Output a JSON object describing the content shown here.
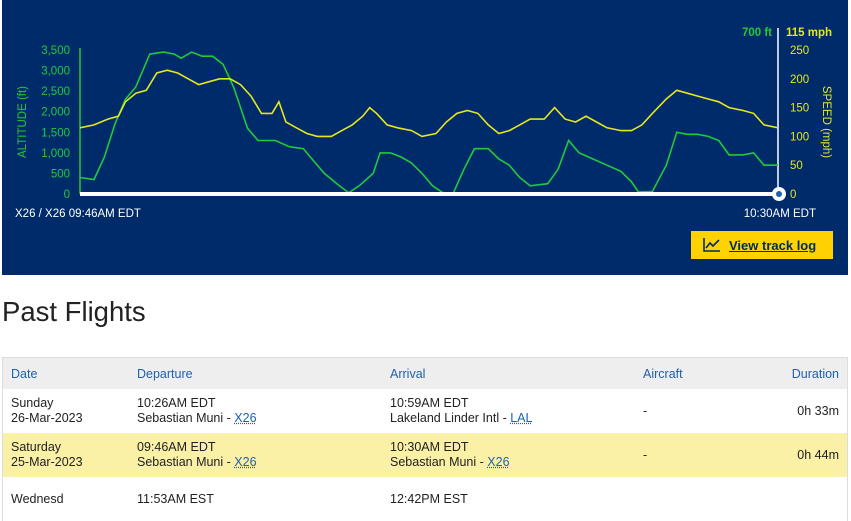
{
  "chart_data": {
    "type": "line",
    "left_axis": {
      "label": "ALTITUDE (ft)",
      "ticks": [
        "3,500",
        "3,000",
        "2,500",
        "2,000",
        "1,500",
        "1,000",
        "500",
        "0"
      ],
      "ylim": [
        0,
        3500
      ],
      "current_value": "700 ft",
      "color": "#22c93a"
    },
    "right_axis": {
      "label": "SPEED (mph)",
      "ticks": [
        "250",
        "200",
        "150",
        "100",
        "50",
        "0"
      ],
      "ylim": [
        0,
        250
      ],
      "current_value": "115 mph",
      "color": "#e6e61e"
    },
    "x_start_label": "X26 / X26 09:46AM EDT",
    "x_end_label": "10:30AM EDT",
    "x_units": "fraction of flight duration",
    "series": [
      {
        "name": "Altitude",
        "color": "#22c93a",
        "points": [
          [
            0,
            400
          ],
          [
            0.02,
            350
          ],
          [
            0.035,
            900
          ],
          [
            0.05,
            1700
          ],
          [
            0.065,
            2300
          ],
          [
            0.08,
            2600
          ],
          [
            0.1,
            3400
          ],
          [
            0.12,
            3450
          ],
          [
            0.135,
            3400
          ],
          [
            0.145,
            3300
          ],
          [
            0.16,
            3450
          ],
          [
            0.175,
            3350
          ],
          [
            0.19,
            3350
          ],
          [
            0.205,
            3150
          ],
          [
            0.22,
            2600
          ],
          [
            0.24,
            1600
          ],
          [
            0.255,
            1300
          ],
          [
            0.28,
            1300
          ],
          [
            0.3,
            1150
          ],
          [
            0.32,
            1100
          ],
          [
            0.335,
            800
          ],
          [
            0.35,
            500
          ],
          [
            0.37,
            220
          ],
          [
            0.385,
            30
          ],
          [
            0.4,
            200
          ],
          [
            0.42,
            500
          ],
          [
            0.43,
            1000
          ],
          [
            0.445,
            1000
          ],
          [
            0.46,
            900
          ],
          [
            0.475,
            750
          ],
          [
            0.49,
            500
          ],
          [
            0.505,
            200
          ],
          [
            0.52,
            30
          ],
          [
            0.535,
            30
          ],
          [
            0.55,
            600
          ],
          [
            0.565,
            1100
          ],
          [
            0.585,
            1100
          ],
          [
            0.6,
            850
          ],
          [
            0.615,
            700
          ],
          [
            0.63,
            400
          ],
          [
            0.645,
            200
          ],
          [
            0.67,
            250
          ],
          [
            0.685,
            600
          ],
          [
            0.7,
            1300
          ],
          [
            0.715,
            1000
          ],
          [
            0.735,
            850
          ],
          [
            0.755,
            700
          ],
          [
            0.775,
            550
          ],
          [
            0.79,
            300
          ],
          [
            0.8,
            50
          ],
          [
            0.82,
            60
          ],
          [
            0.84,
            700
          ],
          [
            0.855,
            1500
          ],
          [
            0.87,
            1450
          ],
          [
            0.885,
            1450
          ],
          [
            0.9,
            1400
          ],
          [
            0.915,
            1300
          ],
          [
            0.93,
            950
          ],
          [
            0.95,
            950
          ],
          [
            0.965,
            1000
          ],
          [
            0.98,
            700
          ],
          [
            1,
            700
          ]
        ]
      },
      {
        "name": "Speed",
        "color": "#e6e61e",
        "points": [
          [
            0,
            115
          ],
          [
            0.02,
            120
          ],
          [
            0.04,
            130
          ],
          [
            0.055,
            135
          ],
          [
            0.065,
            160
          ],
          [
            0.08,
            175
          ],
          [
            0.095,
            180
          ],
          [
            0.11,
            210
          ],
          [
            0.125,
            215
          ],
          [
            0.14,
            210
          ],
          [
            0.155,
            200
          ],
          [
            0.17,
            190
          ],
          [
            0.185,
            195
          ],
          [
            0.2,
            200
          ],
          [
            0.215,
            200
          ],
          [
            0.23,
            190
          ],
          [
            0.245,
            170
          ],
          [
            0.26,
            140
          ],
          [
            0.275,
            140
          ],
          [
            0.285,
            160
          ],
          [
            0.295,
            125
          ],
          [
            0.31,
            115
          ],
          [
            0.325,
            105
          ],
          [
            0.34,
            100
          ],
          [
            0.36,
            100
          ],
          [
            0.375,
            110
          ],
          [
            0.39,
            120
          ],
          [
            0.405,
            135
          ],
          [
            0.415,
            150
          ],
          [
            0.425,
            140
          ],
          [
            0.44,
            120
          ],
          [
            0.455,
            115
          ],
          [
            0.475,
            110
          ],
          [
            0.49,
            100
          ],
          [
            0.51,
            105
          ],
          [
            0.525,
            125
          ],
          [
            0.54,
            140
          ],
          [
            0.555,
            145
          ],
          [
            0.57,
            140
          ],
          [
            0.585,
            120
          ],
          [
            0.6,
            105
          ],
          [
            0.615,
            110
          ],
          [
            0.63,
            120
          ],
          [
            0.645,
            130
          ],
          [
            0.665,
            130
          ],
          [
            0.68,
            150
          ],
          [
            0.695,
            130
          ],
          [
            0.71,
            125
          ],
          [
            0.725,
            135
          ],
          [
            0.74,
            125
          ],
          [
            0.755,
            115
          ],
          [
            0.775,
            110
          ],
          [
            0.79,
            110
          ],
          [
            0.805,
            120
          ],
          [
            0.82,
            140
          ],
          [
            0.84,
            165
          ],
          [
            0.855,
            180
          ],
          [
            0.87,
            175
          ],
          [
            0.885,
            170
          ],
          [
            0.9,
            165
          ],
          [
            0.915,
            160
          ],
          [
            0.93,
            150
          ],
          [
            0.95,
            145
          ],
          [
            0.965,
            140
          ],
          [
            0.98,
            120
          ],
          [
            1,
            115
          ]
        ]
      }
    ]
  },
  "chart_buttons": {
    "view_track_log": "View track log"
  },
  "past_flights": {
    "title": "Past Flights",
    "columns": [
      "Date",
      "Departure",
      "Arrival",
      "Aircraft",
      "Duration"
    ],
    "rows": [
      {
        "day": "Sunday",
        "date": "26-Mar-2023",
        "dep_time": "10:26AM EDT",
        "dep_airport": "Sebastian Muni - ",
        "dep_code": "X26",
        "arr_time": "10:59AM EDT",
        "arr_airport": "Lakeland Linder Intl - ",
        "arr_code": "LAL",
        "aircraft": "-",
        "duration": "0h 33m"
      },
      {
        "day": "Saturday",
        "date": "25-Mar-2023",
        "dep_time": "09:46AM EDT",
        "dep_airport": "Sebastian Muni - ",
        "dep_code": "X26",
        "arr_time": "10:30AM EDT",
        "arr_airport": "Sebastian Muni - ",
        "arr_code": "X26",
        "aircraft": "-",
        "duration": "0h 44m"
      },
      {
        "day": "Wednesd",
        "date": "",
        "dep_time": "11:53AM EST",
        "dep_airport": "",
        "dep_code": "",
        "arr_time": "12:42PM EST",
        "arr_airport": "",
        "arr_code": "",
        "aircraft": "",
        "duration": ""
      }
    ]
  }
}
